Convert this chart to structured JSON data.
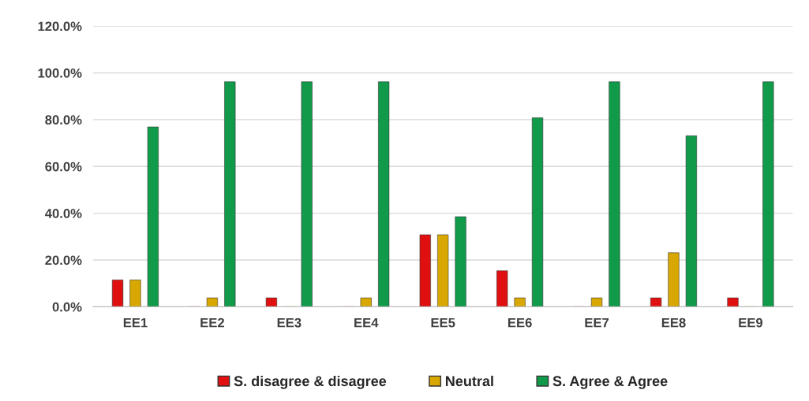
{
  "chart_data": {
    "type": "bar",
    "categories": [
      "EE1",
      "EE2",
      "EE3",
      "EE4",
      "EE5",
      "EE6",
      "EE7",
      "EE8",
      "EE9"
    ],
    "series": [
      {
        "name": "S. disagree & disagree",
        "color": "#e01010",
        "values": [
          11.5,
          0,
          3.8,
          0,
          30.8,
          15.4,
          0,
          3.8,
          3.8
        ]
      },
      {
        "name": "Neutral",
        "color": "#d9a800",
        "values": [
          11.5,
          3.8,
          0,
          3.8,
          30.8,
          3.8,
          3.8,
          23.1,
          0
        ]
      },
      {
        "name": "S. Agree & Agree",
        "color": "#109a4a",
        "values": [
          76.9,
          96.2,
          96.2,
          96.2,
          38.5,
          80.8,
          96.2,
          73.1,
          96.2
        ]
      }
    ],
    "ylim": [
      0,
      120
    ],
    "yticks": [
      {
        "value": 0,
        "label": "0.0%"
      },
      {
        "value": 20,
        "label": "20.0%"
      },
      {
        "value": 40,
        "label": "40.0%"
      },
      {
        "value": 60,
        "label": "60.0%"
      },
      {
        "value": 80,
        "label": "80.0%"
      },
      {
        "value": 100,
        "label": "100.0%"
      },
      {
        "value": 120,
        "label": "120.0%"
      }
    ],
    "grid": "y",
    "legend": "bottom"
  }
}
